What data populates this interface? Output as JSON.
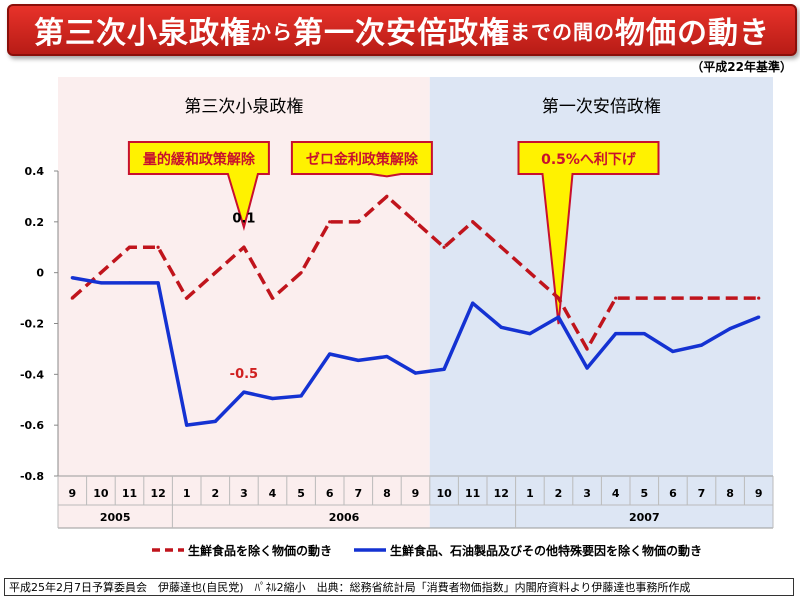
{
  "header": {
    "title_parts": [
      {
        "text": "第三次小泉政権",
        "size": "big"
      },
      {
        "text": "から",
        "size": "small"
      },
      {
        "text": "第一次安倍政権",
        "size": "big"
      },
      {
        "text": "までの間の",
        "size": "small"
      },
      {
        "text": "物価の動き",
        "size": "big"
      }
    ],
    "base_year": "（平成22年基準）"
  },
  "footer": {
    "text": "平成25年2月7日予算委員会　伊藤達也(自民党)　ﾊﾟﾈﾙ2縮小　出典：総務省統計局「消費者物価指数」内閣府資料より伊藤達也事務所作成"
  },
  "chart_data": {
    "type": "line",
    "x_months": [
      "9",
      "10",
      "11",
      "12",
      "1",
      "2",
      "3",
      "4",
      "5",
      "6",
      "7",
      "8",
      "9",
      "10",
      "11",
      "12",
      "1",
      "2",
      "3",
      "4",
      "5",
      "6",
      "7",
      "8",
      "9"
    ],
    "year_groups": [
      {
        "label": "2005",
        "start": 0,
        "end": 3
      },
      {
        "label": "2006",
        "start": 4,
        "end": 15
      },
      {
        "label": "2007",
        "start": 16,
        "end": 24
      }
    ],
    "ylim": [
      -0.8,
      0.4
    ],
    "yticks": [
      "0.4",
      "0.2",
      "0",
      "-0.2",
      "-0.4",
      "-0.6",
      "-0.8"
    ],
    "ytick_values": [
      0.4,
      0.2,
      0,
      -0.2,
      -0.4,
      -0.6,
      -0.8
    ],
    "periods": [
      {
        "label": "第三次小泉政権",
        "start": 0,
        "end": 12,
        "color": "#fbeeee"
      },
      {
        "label": "第一次安倍政権",
        "start": 13,
        "end": 24,
        "color": "#dde6f4"
      }
    ],
    "series": [
      {
        "name": "生鮮食品を除く物価の動き",
        "color": "#c0141c",
        "style": "dashed",
        "values": [
          -0.1,
          0.0,
          0.1,
          0.1,
          -0.1,
          0.0,
          0.1,
          -0.1,
          0.0,
          0.2,
          0.2,
          0.3,
          0.2,
          0.1,
          0.2,
          0.1,
          0.0,
          -0.1,
          -0.3,
          -0.1,
          -0.1,
          -0.1,
          -0.1,
          -0.1,
          -0.1
        ]
      },
      {
        "name": "生鮮食品、石油製品及びその他特殊要因を除く物価の動き",
        "color": "#1432d2",
        "style": "solid",
        "values": [
          -0.02,
          -0.04,
          -0.04,
          -0.04,
          -0.6,
          -0.585,
          -0.47,
          -0.495,
          -0.485,
          -0.32,
          -0.345,
          -0.33,
          -0.395,
          -0.38,
          -0.12,
          -0.215,
          -0.24,
          -0.175,
          -0.375,
          -0.24,
          -0.24,
          -0.31,
          -0.285,
          -0.22,
          -0.175
        ]
      }
    ],
    "annotations": [
      {
        "text": "量的緩和政策解除",
        "point_index": 6
      },
      {
        "text": "ゼロ金利政策解除",
        "point_index": 11
      },
      {
        "text": "0.5%へ利下げ",
        "point_index": 17
      }
    ],
    "data_labels": [
      {
        "text": "0.1",
        "series": 0,
        "point_index": 6,
        "color": "#000000"
      },
      {
        "text": "-0.5",
        "series": 1,
        "point_index": 6,
        "color": "#d02020"
      }
    ]
  }
}
